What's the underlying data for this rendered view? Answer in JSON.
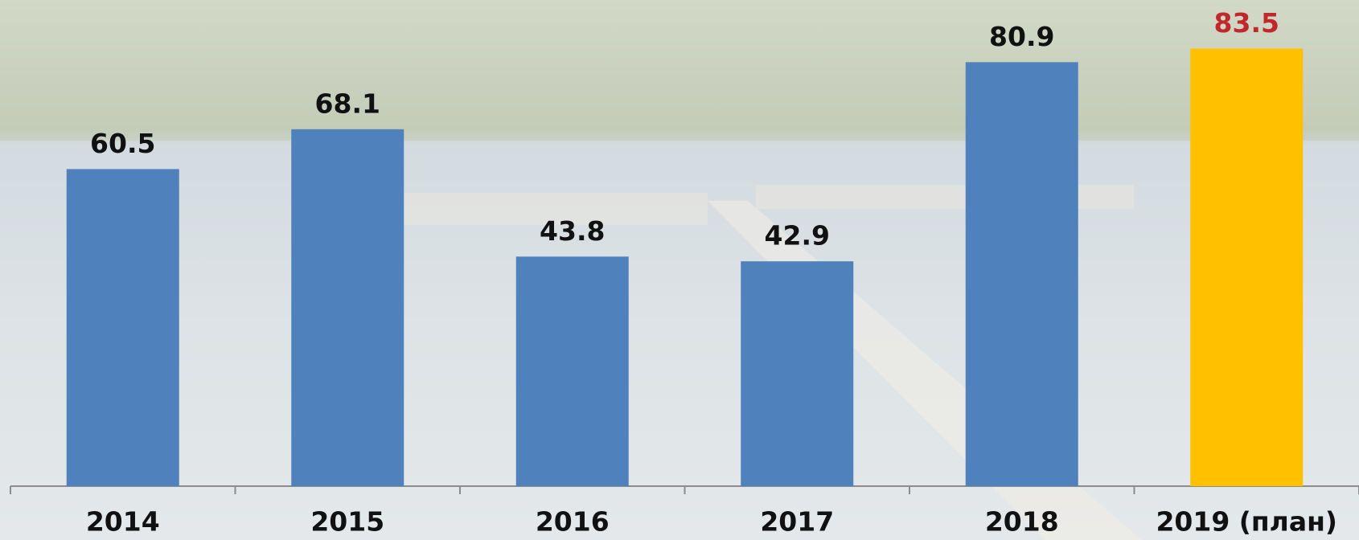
{
  "chart_data": {
    "type": "bar",
    "categories": [
      "2014",
      "2015",
      "2016",
      "2017",
      "2018",
      "2019 (план)"
    ],
    "values": [
      60.5,
      68.1,
      43.8,
      42.9,
      80.9,
      83.5
    ],
    "colors": [
      "#4f81bd",
      "#4f81bd",
      "#4f81bd",
      "#4f81bd",
      "#4f81bd",
      "#ffc000"
    ],
    "label_colors": [
      "#111111",
      "#111111",
      "#111111",
      "#111111",
      "#111111",
      "#c0282d"
    ],
    "ylim": [
      0,
      90
    ]
  }
}
